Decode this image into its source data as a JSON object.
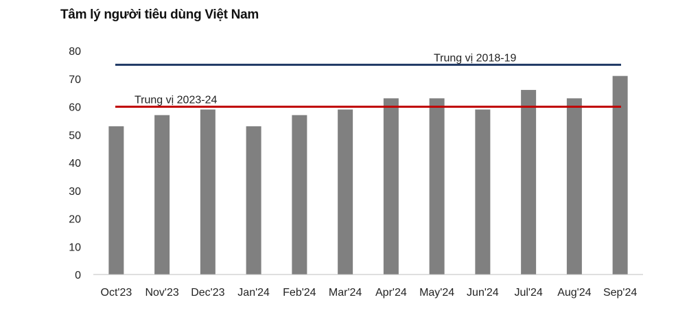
{
  "chart_data": {
    "type": "bar",
    "title": "Tâm lý người tiêu dùng Việt Nam",
    "categories": [
      "Oct'23",
      "Nov'23",
      "Dec'23",
      "Jan'24",
      "Feb'24",
      "Mar'24",
      "Apr'24",
      "May'24",
      "Jun'24",
      "Jul'24",
      "Aug'24",
      "Sep'24"
    ],
    "values": [
      53,
      57,
      59,
      53,
      57,
      59,
      63,
      63,
      59,
      66,
      63,
      71
    ],
    "ylim": [
      0,
      80
    ],
    "yticks": [
      0,
      10,
      20,
      30,
      40,
      50,
      60,
      70,
      80
    ],
    "grid": false,
    "bar_color": "#808080",
    "reference_lines": [
      {
        "label": "Trung vị 2018-19",
        "value": 75,
        "color": "#1f3864"
      },
      {
        "label": "Trung vị 2023-24",
        "value": 60,
        "color": "#c00000"
      }
    ]
  }
}
